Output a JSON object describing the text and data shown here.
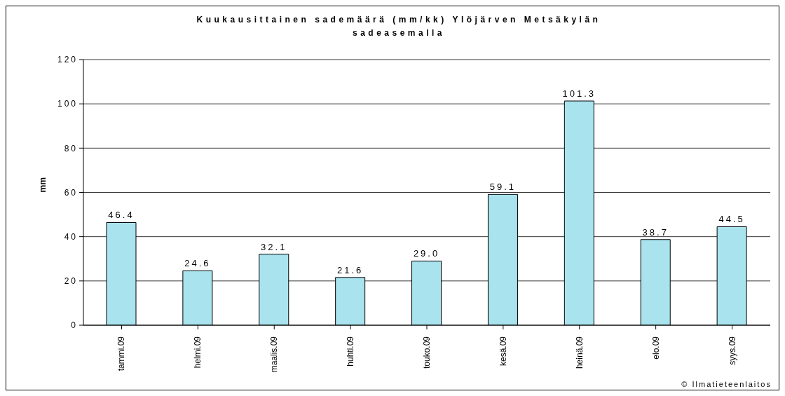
{
  "chart_data": {
    "type": "bar",
    "title": "Kuukausittainen sademäärä (mm/kk) Ylöjärven Metsäkylän sadeasemalla",
    "ylabel": "mm",
    "categories": [
      "tammi.09",
      "helmi.09",
      "maalis.09",
      "huhti.09",
      "touko.09",
      "kesä.09",
      "heinä.09",
      "elo.09",
      "syys.09"
    ],
    "values": [
      46.4,
      24.6,
      32.1,
      21.6,
      29.0,
      59.1,
      101.3,
      38.7,
      44.5
    ],
    "value_labels": [
      "46.4",
      "24.6",
      "32.1",
      "21.6",
      "29.0",
      "59.1",
      "101.3",
      "38.7",
      "44.5"
    ],
    "color": "#a9e3ee",
    "ylim": [
      0,
      120
    ],
    "yticks": [
      0,
      20,
      40,
      60,
      80,
      100,
      120
    ],
    "grid": "y",
    "annotations": [
      "© Ilmatieteenlaitos"
    ]
  }
}
